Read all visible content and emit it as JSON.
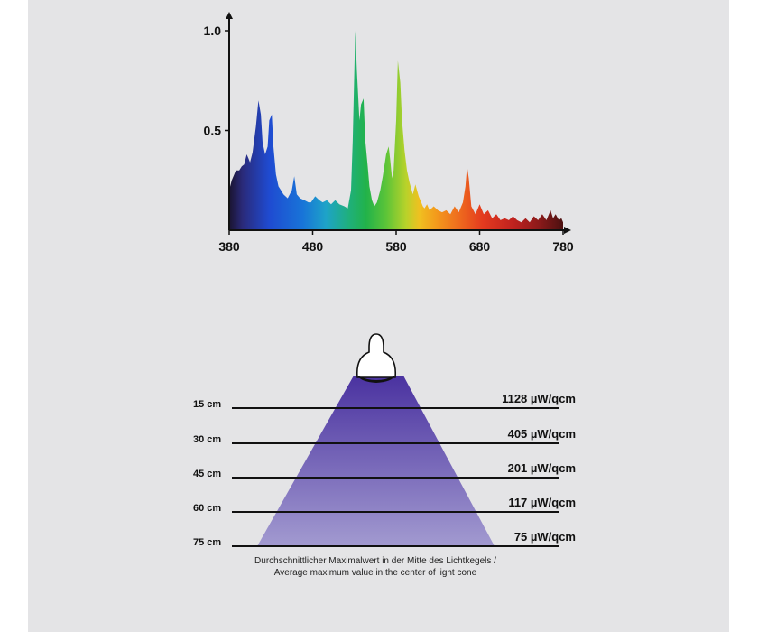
{
  "colors": {
    "background": "#e4e4e6",
    "cone_top": "#4a32a0",
    "cone_bottom": "#a29ad0",
    "axis": "#111111"
  },
  "chart_data": [
    {
      "type": "area",
      "title": "",
      "xlabel": "",
      "ylabel": "",
      "xlim": [
        380,
        780
      ],
      "ylim": [
        0,
        1.05
      ],
      "x_ticks": [
        "380",
        "480",
        "580",
        "680",
        "780"
      ],
      "y_ticks": [
        "0.5",
        "1.0"
      ],
      "y_tick_values": [
        0.5,
        1.0
      ],
      "x_tick_values": [
        380,
        480,
        580,
        680,
        780
      ],
      "grid": false,
      "fill": "visible-spectrum-gradient",
      "series": [
        {
          "x": [
            380,
            383,
            386,
            388,
            392,
            395,
            398,
            401,
            403,
            405,
            408,
            412,
            415,
            418,
            420,
            423,
            426,
            428,
            431,
            433,
            436,
            439,
            442,
            445,
            450,
            455,
            458,
            461,
            465,
            470,
            475,
            478,
            483,
            488,
            492,
            497,
            502,
            507,
            512,
            518,
            522,
            526,
            528,
            531,
            533,
            536,
            538,
            541,
            543,
            546,
            548,
            551,
            554,
            557,
            561,
            564,
            568,
            571,
            573,
            575,
            577,
            580,
            582,
            585,
            587,
            590,
            593,
            596,
            600,
            603,
            607,
            610,
            612,
            614,
            617,
            620,
            625,
            630,
            635,
            640,
            645,
            650,
            655,
            660,
            663,
            665,
            667,
            670,
            675,
            680,
            685,
            690,
            695,
            700,
            705,
            710,
            715,
            720,
            725,
            730,
            735,
            740,
            745,
            750,
            755,
            760,
            763,
            765,
            768,
            771,
            775,
            778,
            780
          ],
          "y": [
            0.2,
            0.25,
            0.28,
            0.3,
            0.3,
            0.32,
            0.33,
            0.38,
            0.36,
            0.34,
            0.39,
            0.52,
            0.65,
            0.58,
            0.44,
            0.38,
            0.42,
            0.55,
            0.58,
            0.42,
            0.28,
            0.22,
            0.2,
            0.18,
            0.16,
            0.2,
            0.27,
            0.18,
            0.16,
            0.15,
            0.14,
            0.14,
            0.17,
            0.15,
            0.14,
            0.15,
            0.13,
            0.15,
            0.13,
            0.12,
            0.11,
            0.2,
            0.45,
            1.0,
            0.8,
            0.55,
            0.63,
            0.66,
            0.45,
            0.32,
            0.22,
            0.15,
            0.12,
            0.14,
            0.2,
            0.27,
            0.38,
            0.42,
            0.35,
            0.26,
            0.3,
            0.55,
            0.85,
            0.74,
            0.55,
            0.4,
            0.3,
            0.24,
            0.18,
            0.23,
            0.17,
            0.14,
            0.12,
            0.11,
            0.13,
            0.1,
            0.12,
            0.1,
            0.09,
            0.1,
            0.08,
            0.12,
            0.09,
            0.14,
            0.22,
            0.32,
            0.26,
            0.12,
            0.08,
            0.13,
            0.08,
            0.1,
            0.06,
            0.08,
            0.05,
            0.06,
            0.05,
            0.07,
            0.05,
            0.04,
            0.06,
            0.04,
            0.07,
            0.05,
            0.08,
            0.05,
            0.08,
            0.1,
            0.06,
            0.08,
            0.05,
            0.06,
            0.04
          ]
        }
      ]
    },
    {
      "type": "diagram",
      "rows": [
        {
          "distance": "15 cm",
          "value": "1128 µW/qcm"
        },
        {
          "distance": "30 cm",
          "value": "405 µW/qcm"
        },
        {
          "distance": "45 cm",
          "value": "201 µW/qcm"
        },
        {
          "distance": "60 cm",
          "value": "117 µW/qcm"
        },
        {
          "distance": "75 cm",
          "value": "75 µW/qcm"
        }
      ],
      "caption_line1": "Durchschnittlicher Maximalwert in der Mitte des Lichtkegels /",
      "caption_line2": "Average maximum value in the center of light cone"
    }
  ]
}
